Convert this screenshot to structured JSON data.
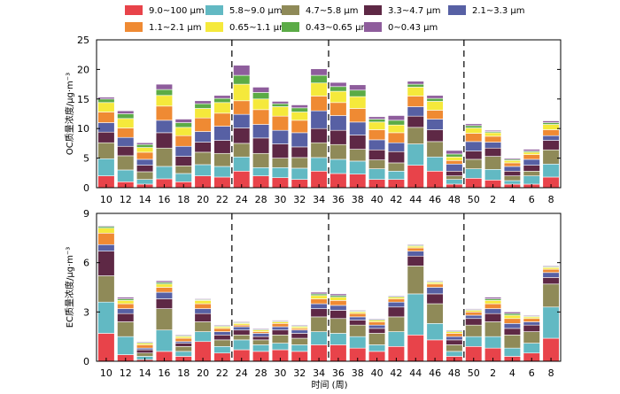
{
  "chart_data": {
    "type": "bar",
    "stacked": true,
    "legend": {
      "placement": "top",
      "entries": [
        {
          "label": "9.0~100 μm",
          "color": "#e8434a"
        },
        {
          "label": "5.8~9.0 μm",
          "color": "#62b9c3"
        },
        {
          "label": "4.7~5.8 μm",
          "color": "#8f8a58"
        },
        {
          "label": "3.3~4.7 μm",
          "color": "#5e2845"
        },
        {
          "label": "2.1~3.3 μm",
          "color": "#5760a4"
        },
        {
          "label": "1.1~2.1 μm",
          "color": "#ef8a33"
        },
        {
          "label": "0.65~1.1 μm",
          "color": "#f5e93b"
        },
        {
          "label": "0.43~0.65 μm",
          "color": "#5bab46"
        },
        {
          "label": "0~0.43 μm",
          "color": "#8e5d9c"
        }
      ]
    },
    "categories": [
      "10",
      "12",
      "14",
      "16",
      "18",
      "20",
      "22",
      "24",
      "28",
      "30",
      "32",
      "34",
      "36",
      "38",
      "40",
      "42",
      "44",
      "46",
      "48",
      "50",
      "2",
      "4",
      "6",
      "8"
    ],
    "xlabel": "时间 (周)",
    "season_breaks_after_index": [
      6,
      11,
      18
    ],
    "panels": [
      {
        "ylabel": "OC质量浓度/μg·m⁻³",
        "ylim": [
          0,
          25
        ],
        "yticks": [
          0,
          5,
          10,
          15,
          20,
          25
        ],
        "stacks": [
          [
            2.0,
            2.9,
            2.7,
            1.8,
            1.6,
            1.8,
            1.6,
            0.6,
            0.3
          ],
          [
            1.0,
            2.0,
            2.4,
            1.6,
            1.5,
            1.6,
            1.6,
            0.8,
            0.5
          ],
          [
            0.6,
            0.8,
            1.3,
            1.1,
            1.0,
            1.2,
            0.8,
            0.5,
            0.3
          ],
          [
            1.5,
            2.1,
            3.1,
            2.6,
            2.1,
            2.4,
            1.8,
            1.0,
            0.9
          ],
          [
            1.0,
            1.4,
            1.3,
            1.6,
            1.7,
            1.8,
            1.4,
            0.8,
            0.6
          ],
          [
            2.0,
            1.9,
            2.1,
            1.7,
            1.8,
            2.3,
            1.6,
            0.8,
            0.5
          ],
          [
            1.8,
            1.8,
            2.2,
            2.2,
            2.4,
            2.2,
            1.8,
            0.7,
            0.5
          ],
          [
            2.8,
            2.4,
            2.3,
            2.6,
            2.3,
            2.3,
            2.8,
            1.5,
            1.7
          ],
          [
            2.0,
            1.4,
            2.4,
            2.6,
            2.3,
            2.5,
            1.8,
            1.1,
            0.9
          ],
          [
            1.7,
            1.7,
            1.6,
            2.4,
            2.3,
            2.4,
            1.6,
            0.5,
            0.4
          ],
          [
            1.4,
            1.9,
            1.8,
            1.8,
            2.4,
            2.1,
            1.4,
            0.7,
            0.5
          ],
          [
            2.8,
            2.3,
            2.5,
            2.4,
            3.0,
            2.5,
            2.2,
            1.3,
            1.1
          ],
          [
            2.4,
            2.4,
            2.5,
            2.4,
            2.5,
            2.2,
            1.9,
            0.8,
            0.7
          ],
          [
            2.3,
            2.2,
            2.0,
            2.4,
            2.2,
            2.3,
            2.0,
            1.1,
            0.9
          ],
          [
            1.4,
            1.8,
            1.5,
            1.7,
            1.7,
            1.7,
            1.3,
            0.5,
            0.4
          ],
          [
            1.4,
            1.4,
            1.4,
            1.9,
            1.5,
            1.7,
            1.3,
            0.8,
            0.8
          ],
          [
            3.8,
            3.6,
            2.8,
            1.9,
            1.6,
            1.8,
            1.5,
            0.5,
            0.5
          ],
          [
            2.8,
            2.4,
            2.6,
            2.0,
            1.8,
            1.5,
            1.5,
            0.5,
            0.5
          ],
          [
            0.6,
            0.8,
            0.6,
            0.8,
            1.2,
            0.6,
            0.6,
            0.5,
            0.6
          ],
          [
            1.6,
            1.6,
            1.6,
            1.4,
            1.6,
            1.4,
            0.9,
            0.4,
            0.3
          ],
          [
            1.3,
            1.8,
            2.2,
            1.4,
            1.0,
            1.0,
            0.6,
            0.2,
            0.2
          ],
          [
            0.6,
            0.6,
            0.8,
            0.8,
            0.8,
            0.6,
            0.4,
            0.2,
            0.2
          ],
          [
            0.6,
            1.4,
            0.8,
            1.0,
            1.0,
            0.8,
            0.4,
            0.2,
            0.3
          ],
          [
            1.8,
            2.2,
            2.4,
            1.6,
            0.8,
            1.0,
            0.9,
            0.3,
            0.3
          ]
        ]
      },
      {
        "ylabel": "EC质量浓度/μg·m⁻³",
        "ylim": [
          0,
          9
        ],
        "yticks": [
          0,
          3,
          6,
          9
        ],
        "stacks": [
          [
            1.7,
            1.9,
            1.6,
            1.5,
            0.4,
            0.7,
            0.3,
            0.1,
            0.05
          ],
          [
            0.4,
            1.1,
            0.9,
            0.5,
            0.3,
            0.3,
            0.2,
            0.1,
            0.1
          ],
          [
            0.1,
            0.2,
            0.2,
            0.2,
            0.1,
            0.2,
            0.1,
            0.05,
            0.05
          ],
          [
            0.6,
            1.3,
            1.3,
            0.6,
            0.4,
            0.3,
            0.2,
            0.1,
            0.1
          ],
          [
            0.3,
            0.3,
            0.3,
            0.2,
            0.1,
            0.2,
            0.1,
            0.05,
            0.05
          ],
          [
            1.2,
            0.6,
            0.6,
            0.5,
            0.3,
            0.3,
            0.2,
            0.05,
            0.05
          ],
          [
            0.5,
            0.4,
            0.4,
            0.3,
            0.2,
            0.2,
            0.1,
            0.05,
            0.05
          ],
          [
            0.7,
            0.6,
            0.3,
            0.3,
            0.2,
            0.1,
            0.1,
            0.05,
            0.05
          ],
          [
            0.6,
            0.4,
            0.3,
            0.2,
            0.2,
            0.1,
            0.1,
            0.05,
            0.05
          ],
          [
            0.7,
            0.4,
            0.5,
            0.3,
            0.2,
            0.2,
            0.1,
            0.05,
            0.05
          ],
          [
            0.6,
            0.4,
            0.4,
            0.3,
            0.2,
            0.1,
            0.1,
            0.05,
            0.05
          ],
          [
            1.0,
            0.8,
            0.9,
            0.5,
            0.3,
            0.3,
            0.2,
            0.1,
            0.1
          ],
          [
            1.0,
            0.7,
            0.9,
            0.5,
            0.3,
            0.3,
            0.2,
            0.1,
            0.1
          ],
          [
            0.8,
            0.7,
            0.7,
            0.3,
            0.2,
            0.2,
            0.1,
            0.05,
            0.05
          ],
          [
            0.6,
            0.4,
            0.7,
            0.3,
            0.2,
            0.2,
            0.1,
            0.05,
            0.05
          ],
          [
            0.9,
            0.9,
            0.9,
            0.6,
            0.3,
            0.2,
            0.1,
            0.05,
            0.05
          ],
          [
            1.6,
            2.5,
            1.7,
            0.6,
            0.3,
            0.2,
            0.1,
            0.05,
            0.05
          ],
          [
            1.3,
            1.0,
            1.2,
            0.6,
            0.4,
            0.2,
            0.1,
            0.05,
            0.05
          ],
          [
            0.3,
            0.3,
            0.4,
            0.3,
            0.2,
            0.2,
            0.1,
            0.05,
            0.05
          ],
          [
            0.9,
            0.6,
            0.7,
            0.4,
            0.2,
            0.2,
            0.1,
            0.05,
            0.05
          ],
          [
            0.8,
            0.7,
            0.9,
            0.5,
            0.3,
            0.3,
            0.2,
            0.1,
            0.1
          ],
          [
            0.3,
            0.5,
            0.8,
            0.4,
            0.3,
            0.3,
            0.2,
            0.1,
            0.1
          ],
          [
            0.5,
            0.6,
            0.7,
            0.4,
            0.2,
            0.2,
            0.1,
            0.05,
            0.05
          ],
          [
            1.4,
            1.9,
            1.4,
            0.4,
            0.3,
            0.2,
            0.1,
            0.05,
            0.05
          ]
        ]
      }
    ]
  }
}
